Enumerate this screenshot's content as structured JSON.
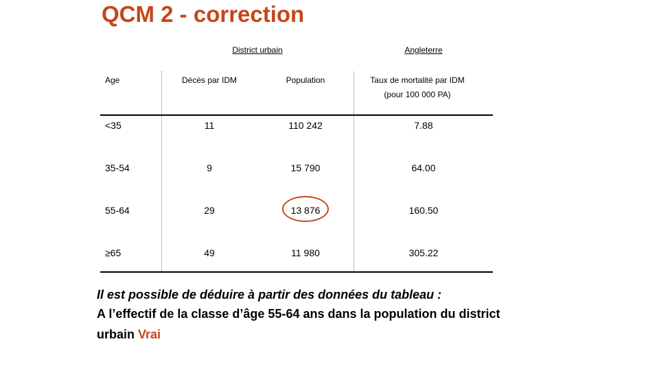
{
  "title": "QCM 2 - correction",
  "groups": {
    "district": "District urbain",
    "england": "Angleterre"
  },
  "headers": {
    "age": "Age",
    "deaths": "Décès par IDM",
    "population": "Population",
    "rate_line1": "Taux de mortalité par IDM",
    "rate_line2": "(pour 100 000 PA)"
  },
  "rows": [
    {
      "age": "<35",
      "deaths": "11",
      "population": "110 242",
      "rate": "7.88"
    },
    {
      "age": "35-54",
      "deaths": "9",
      "population": "15 790",
      "rate": "64.00"
    },
    {
      "age": "55-64",
      "deaths": "29",
      "population": "13 876",
      "rate": "160.50"
    },
    {
      "age": "≥65",
      "deaths": "49",
      "population": "11 980",
      "rate": "305.22"
    }
  ],
  "highlight_color": "#c5461a",
  "question": {
    "intro": "Il est possible de déduire à partir des données du tableau :",
    "line1": "A l’effectif de la classe d’âge 55-64 ans dans la population du district",
    "line2": "urbain",
    "answer": "Vrai"
  }
}
